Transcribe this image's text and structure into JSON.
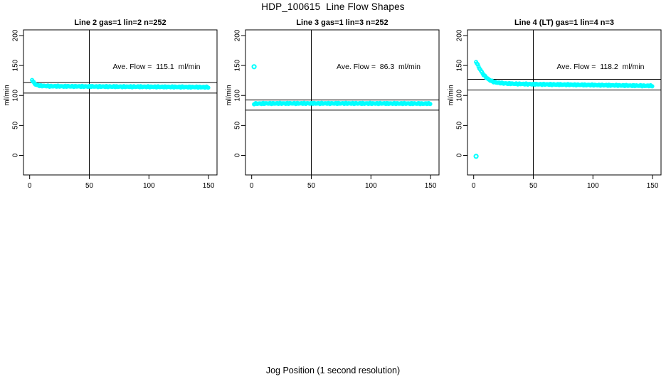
{
  "title": "HDP_100615  Line Flow Shapes",
  "xlabel": "Jog Position (1 second resolution)",
  "colors": {
    "points": "#00ffff",
    "axis": "#000000",
    "background": "#ffffff",
    "text": "#000000"
  },
  "axes": {
    "ylabel": "ml/min",
    "x_ticks": [
      0,
      50,
      100,
      150
    ],
    "y_ticks": [
      0,
      50,
      100,
      150,
      200
    ],
    "x_range": [
      -5,
      157
    ],
    "y_range": [
      -33,
      210
    ],
    "grid": false
  },
  "chart_data": [
    {
      "type": "scatter",
      "title": "Line 2 gas=1 lin=2 n=252",
      "line": 2,
      "gas": 1,
      "lin": 2,
      "n": 252,
      "annotation": "Ave. Flow =  115.1  ml/min",
      "ave_flow_ml_min": 115.1,
      "vline_x": 50,
      "hlines": [
        121.5,
        104
      ],
      "trend": [
        [
          2,
          126.5
        ],
        [
          3,
          122.5
        ],
        [
          4,
          120
        ],
        [
          5,
          118.5
        ],
        [
          6,
          117.5
        ],
        [
          8,
          116.5
        ],
        [
          10,
          116
        ],
        [
          15,
          115.6
        ],
        [
          20,
          115.4
        ],
        [
          30,
          115.2
        ],
        [
          50,
          115
        ],
        [
          70,
          114.8
        ],
        [
          90,
          114.6
        ],
        [
          110,
          114.4
        ],
        [
          130,
          114.1
        ],
        [
          150,
          113.8
        ]
      ],
      "band_halfwidth": 1.1,
      "outliers": []
    },
    {
      "type": "scatter",
      "title": "Line 3 gas=1 lin=3 n=252",
      "line": 3,
      "gas": 1,
      "lin": 3,
      "n": 252,
      "annotation": "Ave. Flow =  86.3  ml/min",
      "ave_flow_ml_min": 86.3,
      "vline_x": 50,
      "hlines": [
        92.5,
        75.5
      ],
      "trend": [
        [
          2,
          86.2
        ],
        [
          5,
          86.5
        ],
        [
          10,
          86.7
        ],
        [
          30,
          86.8
        ],
        [
          60,
          86.8
        ],
        [
          100,
          86.7
        ],
        [
          130,
          86.6
        ],
        [
          150,
          86.4
        ]
      ],
      "band_halfwidth": 1.1,
      "outliers": [
        [
          2,
          148
        ]
      ]
    },
    {
      "type": "scatter",
      "title": "Line 4 (LT) gas=1 lin=4 n=3",
      "line": 4,
      "lt": true,
      "gas": 1,
      "lin": 4,
      "n": 3,
      "annotation": "Ave. Flow =  118.2  ml/min",
      "ave_flow_ml_min": 118.2,
      "vline_x": 50,
      "hlines": [
        127,
        109
      ],
      "trend": [
        [
          2,
          156.5
        ],
        [
          3,
          152.5
        ],
        [
          4,
          148.5
        ],
        [
          5,
          145
        ],
        [
          6,
          141.5
        ],
        [
          7,
          138.5
        ],
        [
          8,
          135.5
        ],
        [
          9,
          133
        ],
        [
          10,
          131
        ],
        [
          12,
          127.5
        ],
        [
          14,
          125
        ],
        [
          16,
          123.3
        ],
        [
          18,
          122.2
        ],
        [
          20,
          121.4
        ],
        [
          25,
          120.3
        ],
        [
          30,
          119.8
        ],
        [
          40,
          119.2
        ],
        [
          50,
          118.8
        ],
        [
          60,
          118.5
        ],
        [
          80,
          118
        ],
        [
          100,
          117.4
        ],
        [
          120,
          116.8
        ],
        [
          150,
          116
        ]
      ],
      "band_halfwidth": 1.1,
      "outliers": [
        [
          2,
          -1.5
        ]
      ]
    }
  ]
}
